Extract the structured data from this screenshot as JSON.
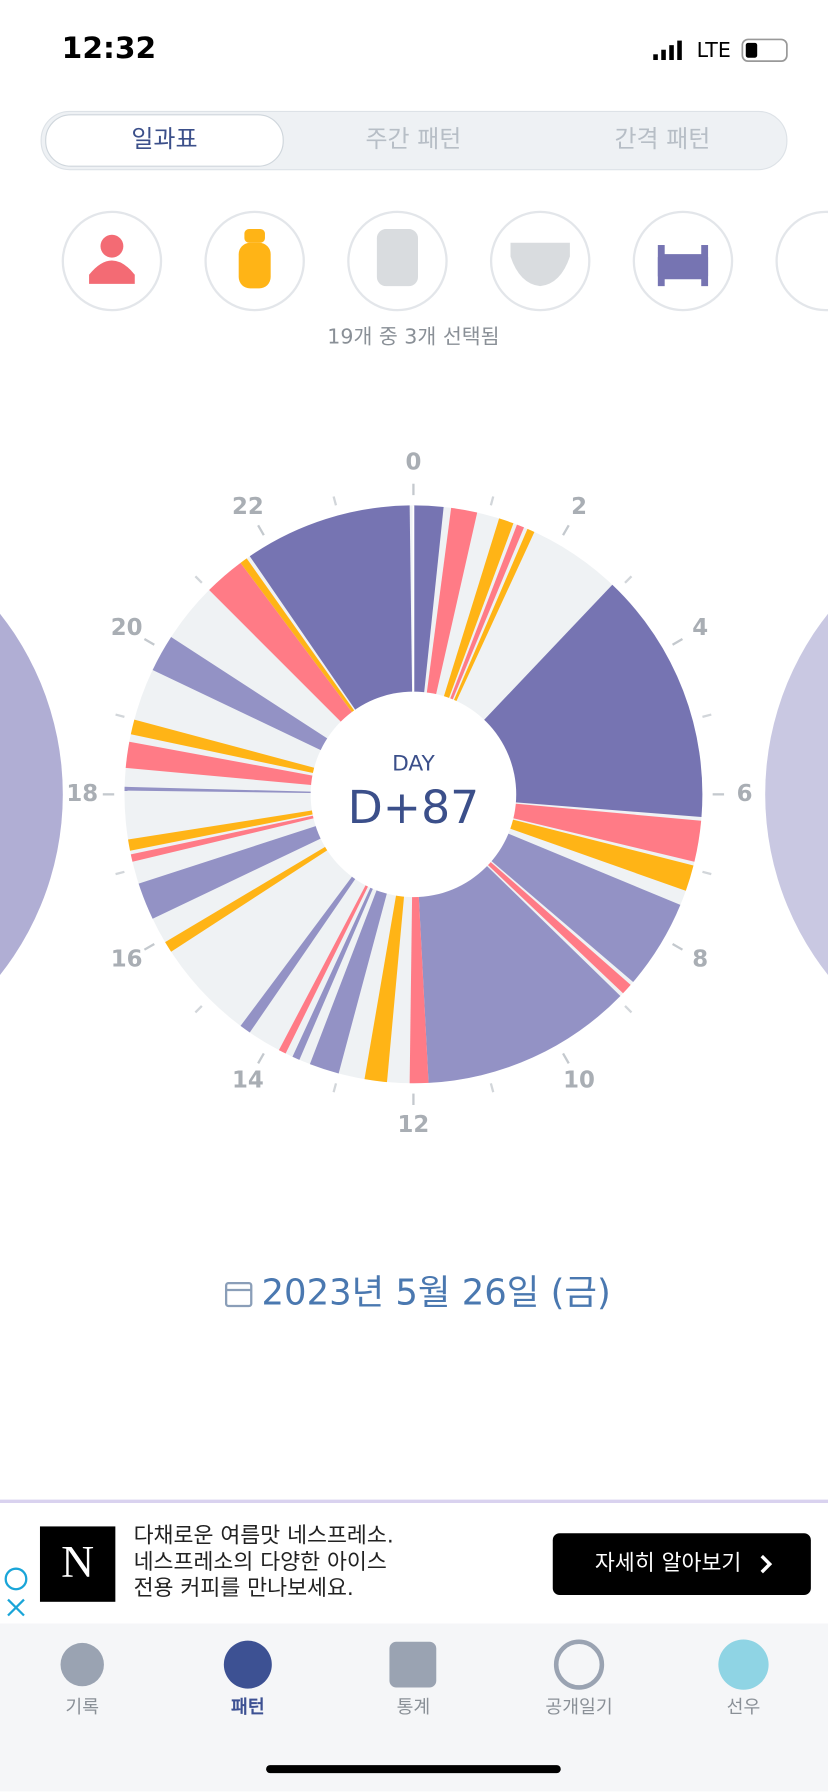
{
  "status_bar": {
    "time": "12:32",
    "network": "LTE"
  },
  "tabs": [
    "일과표",
    "주간 패턴",
    "간격 패턴"
  ],
  "filter_caption": "19개 중 3개 선택됨",
  "clock": {
    "hour_labels": [
      0,
      2,
      4,
      6,
      8,
      10,
      12,
      14,
      16,
      18,
      20,
      22
    ],
    "minor_ticks": [
      1,
      3,
      5,
      7,
      9,
      11,
      13,
      15,
      17,
      19,
      21,
      23
    ],
    "center_caption": "DAY",
    "center_value": "D+87",
    "series": [
      {
        "color": "#7674b2",
        "segments": [
          [
            0,
            0.4
          ],
          [
            2.9,
            6.3
          ],
          [
            21.7,
            23.95
          ]
        ]
      },
      {
        "color": "#9392c5",
        "segments": [
          [
            7.5,
            8.7
          ],
          [
            8.95,
            11.8
          ],
          [
            13.0,
            13.4
          ],
          [
            13.55,
            13.65
          ],
          [
            14.3,
            14.45
          ],
          [
            16.3,
            16.8
          ],
          [
            18.05,
            18.1
          ],
          [
            19.7,
            20.2
          ]
        ]
      },
      {
        "color": "#ff7b86",
        "segments": [
          [
            0.5,
            0.85
          ],
          [
            1.4,
            1.5
          ],
          [
            6.35,
            6.9
          ],
          [
            8.75,
            8.9
          ],
          [
            11.8,
            12.05
          ],
          [
            13.75,
            13.85
          ],
          [
            17.1,
            17.2
          ],
          [
            18.35,
            18.7
          ],
          [
            21.0,
            21.55
          ]
        ]
      },
      {
        "color": "#ffb416",
        "segments": [
          [
            1.15,
            1.35
          ],
          [
            1.55,
            1.65
          ],
          [
            6.95,
            7.3
          ],
          [
            12.35,
            12.65
          ],
          [
            15.8,
            15.95
          ],
          [
            17.25,
            17.4
          ],
          [
            18.8,
            19.0
          ],
          [
            21.55,
            21.65
          ]
        ]
      }
    ]
  },
  "date": "2023년 5월 26일 (금)",
  "ad": {
    "lines": [
      "다채로운 여름맛 네스프레소.",
      "네스프레소의 다양한 아이스",
      "전용 커피를 만나보세요."
    ],
    "button": "자세히 알아보기"
  },
  "nav": [
    "기록",
    "패턴",
    "통계",
    "공개일기",
    "선우"
  ]
}
